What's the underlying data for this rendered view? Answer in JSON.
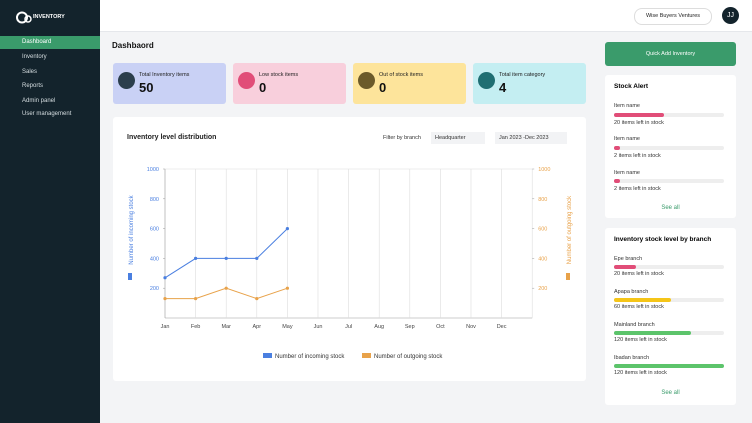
{
  "sidebar": {
    "logo": "INVENTORY",
    "nav": [
      "Dashboard",
      "Inventory",
      "Sales",
      "Reports",
      "Admin panel",
      "User management"
    ]
  },
  "topbar": {
    "business": "Wise Buyers Ventures",
    "avatar": "JJ"
  },
  "page_title": "Dashbaord",
  "cards": [
    {
      "label": "Total Inventory items",
      "value": 50
    },
    {
      "label": "Low stock items",
      "value": 0
    },
    {
      "label": "Out of stock items",
      "value": 0
    },
    {
      "label": "Total item category",
      "value": 4
    }
  ],
  "chart_panel": {
    "title": "Inventory level distribution",
    "filter_label": "Filter by branch",
    "filter_value": "Headquarter",
    "date_range": "Jan 2023 -Dec 2023"
  },
  "chart_data": {
    "type": "line",
    "categories": [
      "Jan",
      "Feb",
      "Mar",
      "Apr",
      "May",
      "Jun",
      "Jul",
      "Aug",
      "Sep",
      "Oct",
      "Nov",
      "Dec"
    ],
    "ylabel": "Number of incoming stock",
    "y2label": "Number of outgoing stock",
    "ylim": [
      0,
      1000
    ],
    "yticks": [
      200,
      400,
      600,
      800,
      1000
    ],
    "y2lim": [
      0,
      1000
    ],
    "y2ticks": [
      200,
      400,
      600,
      800,
      1000
    ],
    "series": [
      {
        "name": "Number of incoming stock",
        "color": "#4a7fe0",
        "axis": "y",
        "values": [
          270,
          400,
          400,
          400,
          600,
          null,
          null,
          null,
          null,
          null,
          null,
          null
        ]
      },
      {
        "name": "Number of outgoing stock",
        "color": "#e8a24a",
        "axis": "y2",
        "values": [
          130,
          130,
          200,
          130,
          200,
          null,
          null,
          null,
          null,
          null,
          null,
          null
        ]
      }
    ]
  },
  "quick_add": "Quick Add Inventory",
  "stock_alert": {
    "title": "Stock Alert",
    "items": [
      {
        "name": "Item name",
        "status": "20 items left in stock"
      },
      {
        "name": "Item name",
        "status": "2 items left in stock"
      },
      {
        "name": "Item name",
        "status": "2 items left in stock"
      }
    ],
    "see_all": "See all"
  },
  "branch_stock": {
    "title": "Inventory stock level by branch",
    "items": [
      {
        "name": "Epe branch",
        "status": "20 items left in stock"
      },
      {
        "name": "Apapa branch",
        "status": "60 items left in stock"
      },
      {
        "name": "Mainland branch",
        "status": "120 items left in stock"
      },
      {
        "name": "Ibadan branch",
        "status": "120 items left in stock"
      }
    ],
    "see_all": "See all"
  }
}
